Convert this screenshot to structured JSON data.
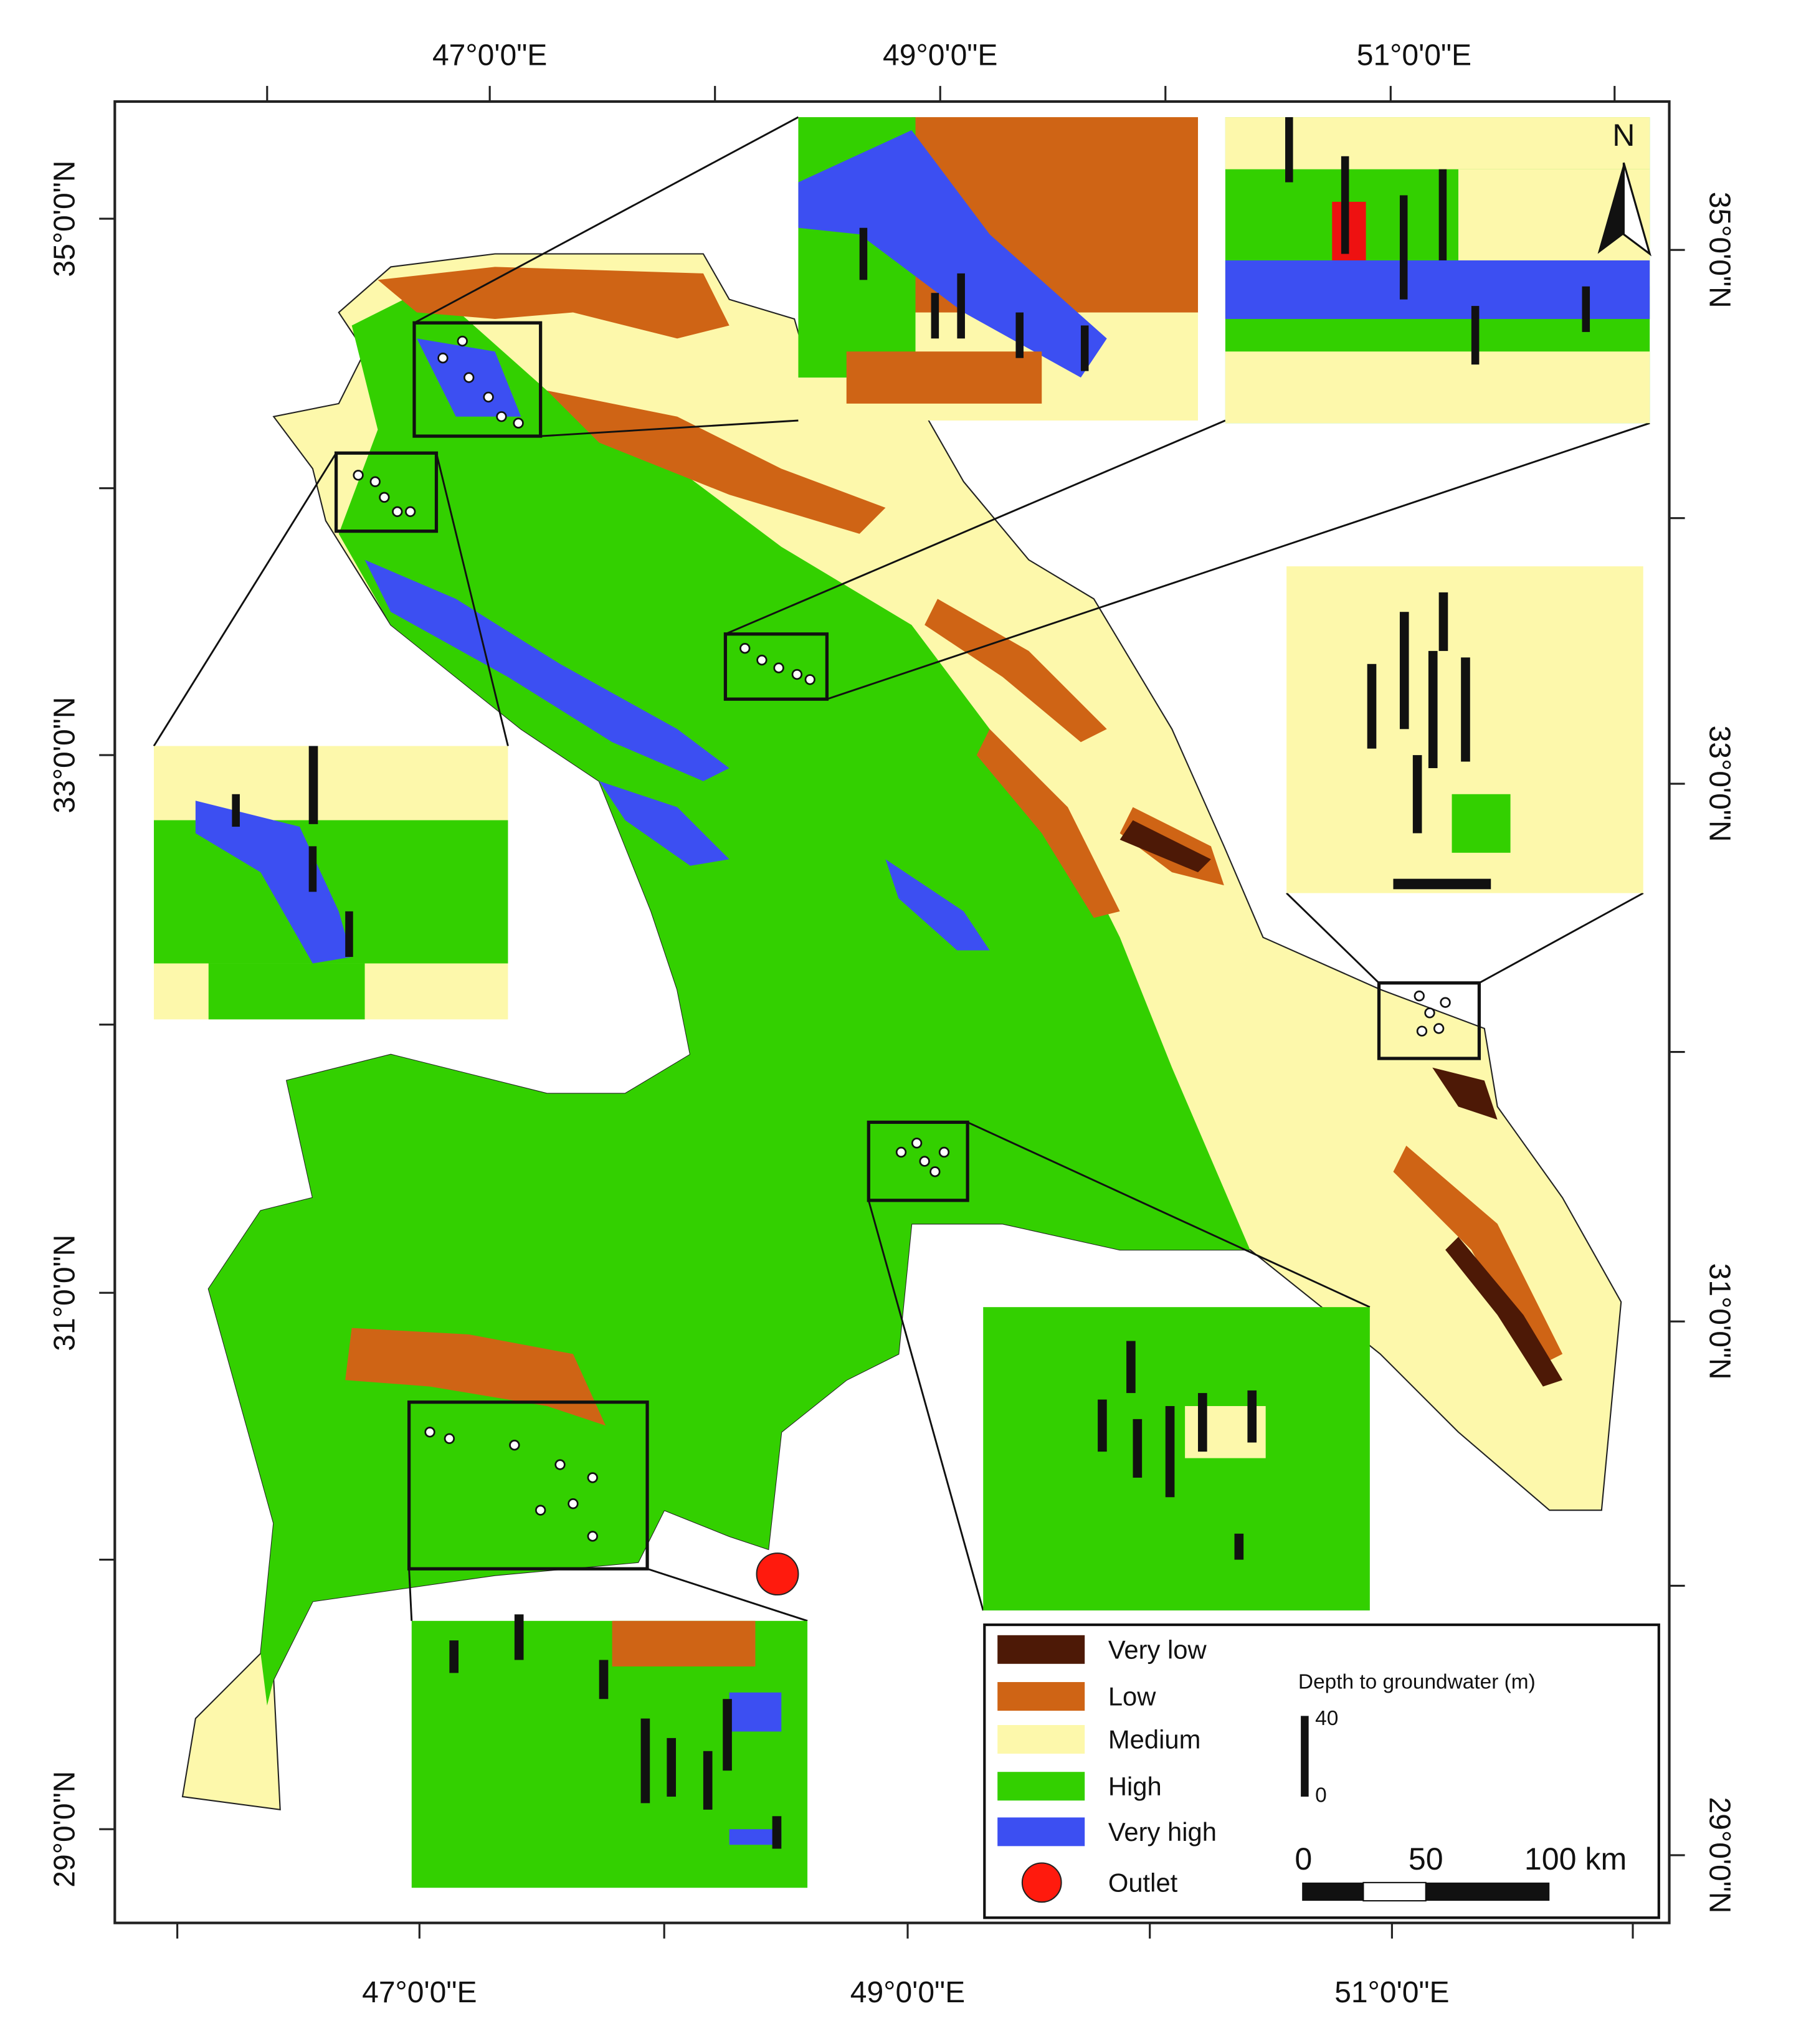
{
  "map": {
    "top_labels": [
      "47°0'0\"E",
      "49°0'0\"E",
      "51°0'0\"E"
    ],
    "bottom_labels": [
      "47°0'0\"E",
      "49°0'0\"E",
      "51°0'0\"E"
    ],
    "left_labels": [
      "35°0'0\"N",
      "33°0'0\"N",
      "31°0'0\"N",
      "29°0'0\"N"
    ],
    "right_labels": [
      "35°0'0\"N",
      "33°0'0\"N",
      "31°0'0\"N",
      "29°0'0\"N"
    ],
    "north": "N",
    "legend": {
      "items": [
        {
          "label": "Very low",
          "color": "#4d1906"
        },
        {
          "label": "Low",
          "color": "#cf6415"
        },
        {
          "label": "Medium",
          "color": "#fdf8ab"
        },
        {
          "label": "High",
          "color": "#33d000"
        },
        {
          "label": "Very high",
          "color": "#3c4ff2"
        },
        {
          "label": "Outlet",
          "color": "#ff1a0d"
        }
      ],
      "depth_title": "Depth to groundwater (m)",
      "depth_max": "40",
      "depth_min": "0",
      "scale": [
        "0",
        "50",
        "100 km"
      ]
    }
  }
}
